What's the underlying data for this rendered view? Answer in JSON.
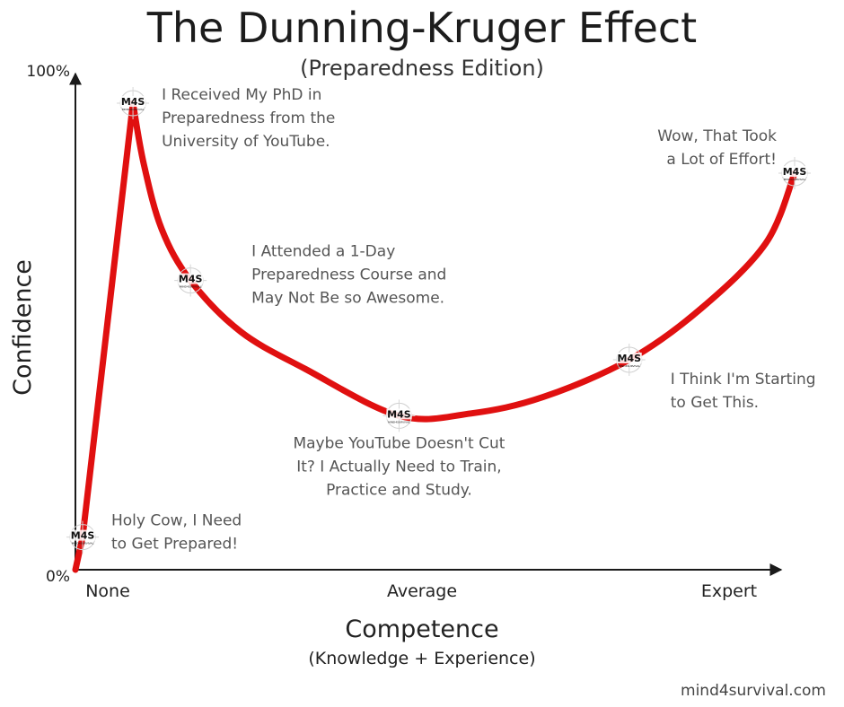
{
  "title": "The Dunning-Kruger Effect",
  "subtitle": "(Preparedness Edition)",
  "footer": "mind4survival.com",
  "marker_logo": {
    "main": "M4S",
    "sub": "MIND4SURVIVAL"
  },
  "colors": {
    "curve": "#e01010",
    "axis": "#1a1a1a",
    "annotation": "#555555"
  },
  "chart_data": {
    "type": "line",
    "title": "The Dunning-Kruger Effect",
    "subtitle": "(Preparedness Edition)",
    "xlabel": "Competence",
    "xlabel_sub": "(Knowledge + Experience)",
    "ylabel": "Confidence",
    "x_ticks": [
      "None",
      "Average",
      "Expert"
    ],
    "y_ticks": [
      "0%",
      "100%"
    ],
    "xlim": [
      0,
      100
    ],
    "ylim": [
      0,
      100
    ],
    "grid": false,
    "series": [
      {
        "values": [
          {
            "x": 0,
            "y": 0
          },
          {
            "x": 1,
            "y": 7
          },
          {
            "x": 8,
            "y": 100
          },
          {
            "x": 9.5,
            "y": 87
          },
          {
            "x": 12,
            "y": 73
          },
          {
            "x": 16,
            "y": 62
          },
          {
            "x": 23,
            "y": 51
          },
          {
            "x": 32,
            "y": 43
          },
          {
            "x": 45,
            "y": 33
          },
          {
            "x": 55,
            "y": 33.5
          },
          {
            "x": 65,
            "y": 37
          },
          {
            "x": 77,
            "y": 45
          },
          {
            "x": 87,
            "y": 56
          },
          {
            "x": 96,
            "y": 70
          },
          {
            "x": 100,
            "y": 85
          }
        ]
      }
    ],
    "annotations": [
      {
        "x": 1,
        "y": 7,
        "lines": [
          "Holy Cow, I Need",
          "to Get Prepared!"
        ]
      },
      {
        "x": 8,
        "y": 100,
        "lines": [
          "I Received My PhD in",
          "Preparedness from the",
          "University of YouTube."
        ]
      },
      {
        "x": 16,
        "y": 62,
        "lines": [
          "I Attended a 1-Day",
          "Preparedness Course and",
          "May Not Be so Awesome."
        ]
      },
      {
        "x": 45,
        "y": 33,
        "lines": [
          "Maybe YouTube Doesn't Cut",
          "It? I Actually Need to Train,",
          "Practice and Study."
        ]
      },
      {
        "x": 77,
        "y": 45,
        "lines": [
          "I Think I'm Starting",
          "to Get This."
        ]
      },
      {
        "x": 100,
        "y": 85,
        "lines": [
          "Wow, That Took",
          "a Lot of Effort!"
        ]
      }
    ]
  }
}
